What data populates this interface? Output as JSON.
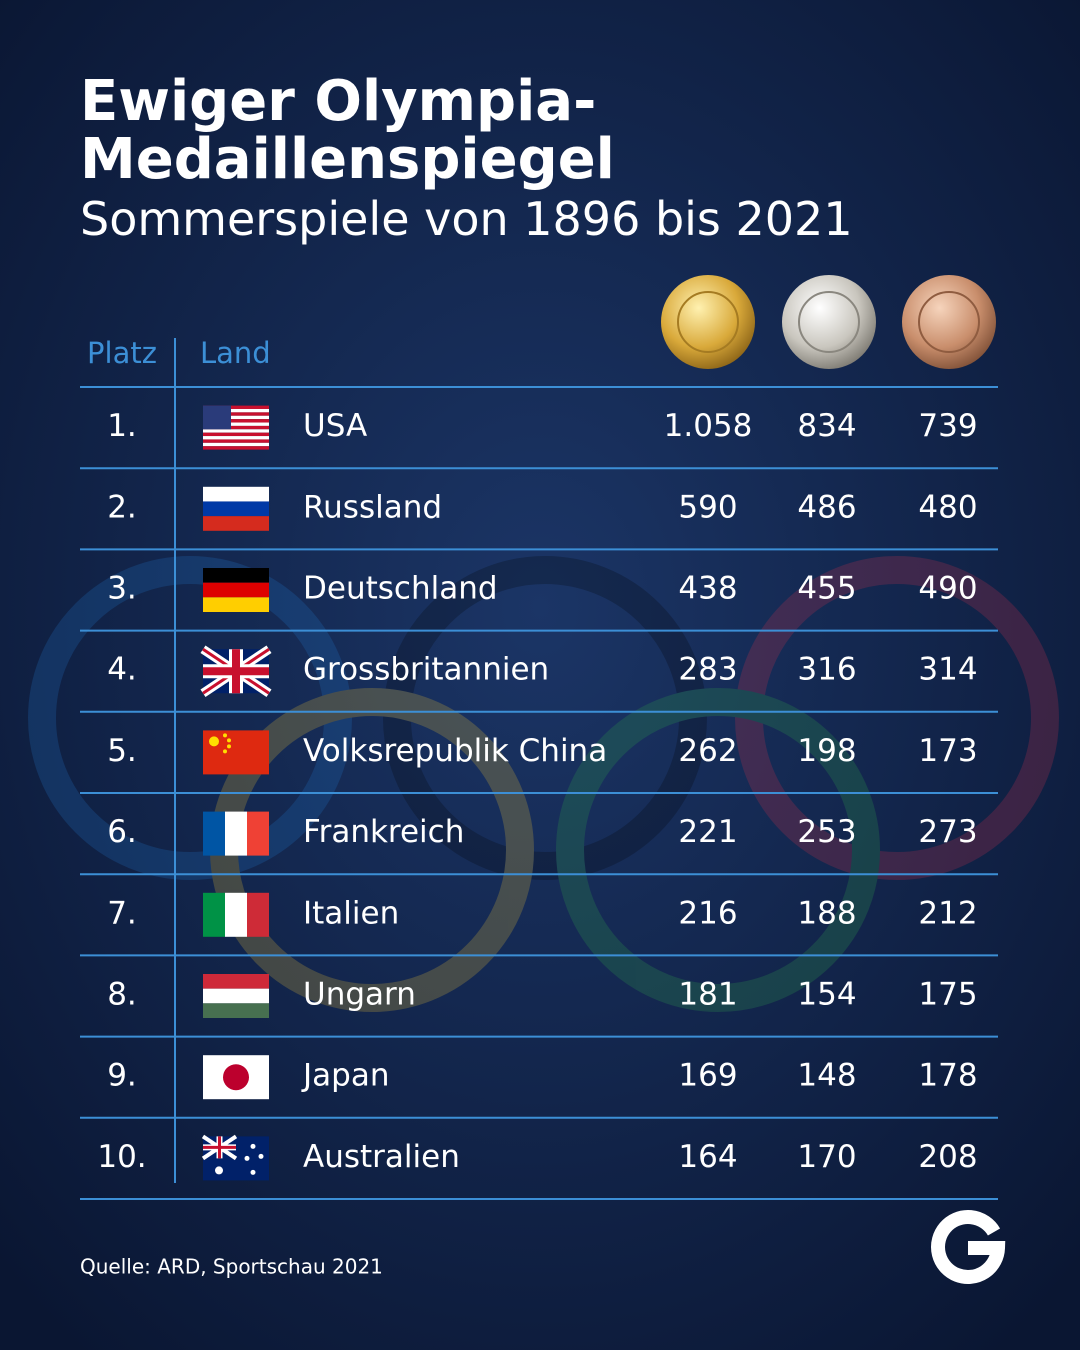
{
  "header": {
    "title_lines": [
      "Ewiger Olympia-",
      "Medaillenspiegel"
    ],
    "subtitle": "Sommerspiele von 1896 bis 2021"
  },
  "table": {
    "columns": [
      "Platz",
      "Land"
    ],
    "rows": [
      [
        "1.",
        "USA",
        "1.058",
        "834",
        "739"
      ],
      [
        "2.",
        "Russland",
        "590",
        "486",
        "480"
      ],
      [
        "3.",
        "Deutschland",
        "438",
        "455",
        "490"
      ],
      [
        "4.",
        "Grossbritannien",
        "283",
        "316",
        "314"
      ],
      [
        "5.",
        "Volksrepublik China",
        "262",
        "198",
        "173"
      ],
      [
        "6.",
        "Frankreich",
        "221",
        "253",
        "273"
      ],
      [
        "7.",
        "Italien",
        "216",
        "188",
        "212"
      ],
      [
        "8.",
        "Ungarn",
        "181",
        "154",
        "175"
      ],
      [
        "9.",
        "Japan",
        "169",
        "148",
        "178"
      ],
      [
        "10.",
        "Australien",
        "164",
        "170",
        "208"
      ]
    ]
  },
  "source": "Quelle: ARD, Sportschau 2021"
}
